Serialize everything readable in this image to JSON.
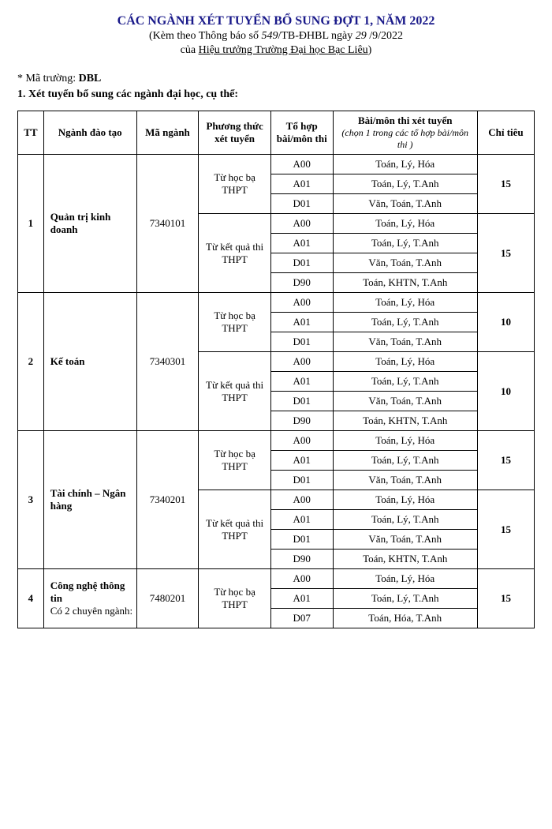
{
  "header": {
    "title": "CÁC NGÀNH XÉT TUYỂN BỔ SUNG ĐỢT 1, NĂM 2022",
    "subtitle_prefix": "(Kèm theo Thông báo số ",
    "tb_no": "549",
    "subtitle_mid": "/TB-ĐHBL ngày ",
    "day": "29",
    "subtitle_suffix": " /9/2022",
    "subtitle2_prefix": "của ",
    "subtitle2_main": "Hiệu trưởng Trường Đại học Bạc Liêu",
    "subtitle2_suffix": ")"
  },
  "meta": {
    "school_code_label": "* Mã trường: ",
    "school_code": "DBL",
    "section_label": "1. Xét tuyển bổ sung các ngành đại học, cụ thể:"
  },
  "columns": {
    "tt": "TT",
    "nganh": "Ngành đào tạo",
    "ma": "Mã ngành",
    "pt": "Phương thức xét tuyển",
    "tohop": "Tổ hợp bài/môn thi",
    "mon_main": "Bài/môn thi xét tuyển",
    "mon_sub": "(chọn 1 trong các tổ hợp bài/môn thi )",
    "chitieu": "Chỉ tiêu"
  },
  "combos": {
    "A00": "Toán, Lý, Hóa",
    "A01": "Toán, Lý, T.Anh",
    "D01": "Văn, Toán, T.Anh",
    "D90": "Toán, KHTN, T.Anh",
    "D07": "Toán, Hóa, T.Anh"
  },
  "pt_labels": {
    "hocba": "Từ học bạ THPT",
    "ketqua": "Từ kết quả thi THPT"
  },
  "rows": [
    {
      "tt": "1",
      "nganh": "Quản trị kinh doanh",
      "ma": "7340101",
      "groups": [
        {
          "pt": "hocba",
          "quota": "15",
          "combos": [
            "A00",
            "A01",
            "D01"
          ]
        },
        {
          "pt": "ketqua",
          "quota": "15",
          "combos": [
            "A00",
            "A01",
            "D01",
            "D90"
          ]
        }
      ]
    },
    {
      "tt": "2",
      "nganh": "Kế toán",
      "ma": "7340301",
      "groups": [
        {
          "pt": "hocba",
          "quota": "10",
          "combos": [
            "A00",
            "A01",
            "D01"
          ]
        },
        {
          "pt": "ketqua",
          "quota": "10",
          "combos": [
            "A00",
            "A01",
            "D01",
            "D90"
          ]
        }
      ]
    },
    {
      "tt": "3",
      "nganh": "Tài chính – Ngân hàng",
      "ma": "7340201",
      "groups": [
        {
          "pt": "hocba",
          "quota": "15",
          "combos": [
            "A00",
            "A01",
            "D01"
          ]
        },
        {
          "pt": "ketqua",
          "quota": "15",
          "combos": [
            "A00",
            "A01",
            "D01",
            "D90"
          ]
        }
      ]
    },
    {
      "tt": "4",
      "nganh": "Công nghệ thông tin\nCó 2 chuyên ngành:",
      "ma": "7480201",
      "groups": [
        {
          "pt": "hocba",
          "quota": "15",
          "combos": [
            "A00",
            "A01",
            "D07"
          ]
        }
      ]
    }
  ]
}
